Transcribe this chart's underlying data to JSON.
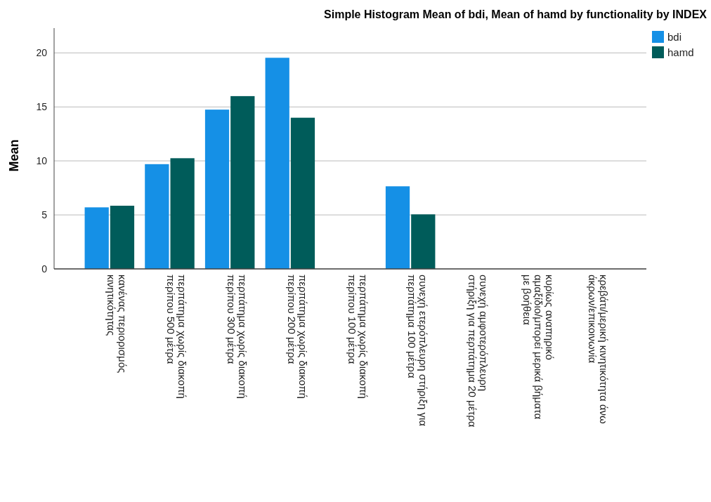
{
  "chart_data": {
    "type": "bar",
    "title": "Simple Histogram Mean of bdi, Mean of hamd by functionality by INDEX",
    "ylabel": "Mean",
    "categories": [
      "κανένας περιορισμός\nκινητικότητας",
      "περπάτημα χωρίς διακοπή\nπερίπου 500 μέτρα",
      "περπάτημα χωρίς διακοπή\nπερίπου 300 μέτρα",
      "περπάτημα χωρίς διακοπή\nπερίπου 200 μέτρα",
      "περπάτημα χωρίς διακοπή\nπερίπου 100 μέτρα",
      "συνεχή ετερόπλευρη στήριξη για\nπερπάτημα 100 μέτρα",
      "συνεχή αμφοτερόπλευρη\nστήριξη για περπάτημα 20 μέτρα",
      "κυρίως αναπηρικό\nαμαξίδιο/μπορεί μερικά βήματα\nμε βοήθεια",
      "κρεβάτι/μερική κινητικότητα άνω\nάκρων/επικοινωνία"
    ],
    "series": [
      {
        "name": "bdi",
        "color": "#1590e6",
        "values": [
          5.7,
          9.7,
          14.75,
          19.55,
          null,
          7.65,
          null,
          null,
          null
        ]
      },
      {
        "name": "hamd",
        "color": "#005c5a",
        "values": [
          5.85,
          10.25,
          16.0,
          14.0,
          null,
          5.05,
          null,
          null,
          null
        ]
      }
    ],
    "ylim": [
      0,
      22.3
    ],
    "yticks": [
      0,
      5,
      10,
      15,
      20
    ],
    "grid": "y",
    "legend": "top right"
  }
}
